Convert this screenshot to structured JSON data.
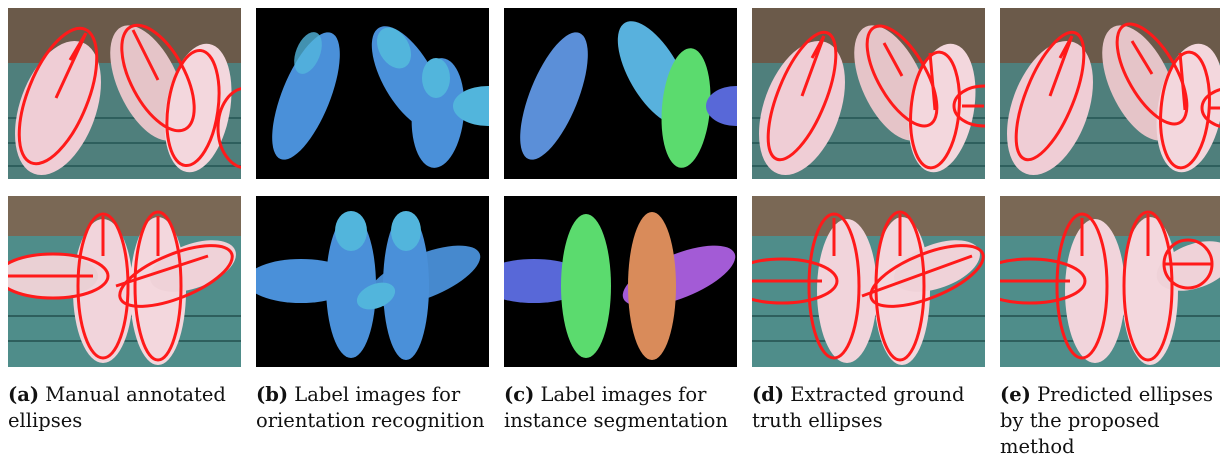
{
  "figure": {
    "colors": {
      "label_black": "#000000",
      "orientation_blue": "#4a90d9",
      "orientation_light": "#52b5dc",
      "seg_blue": "#5b8fd8",
      "seg_light": "#58b1dd",
      "seg_green": "#5bdb6e",
      "seg_indigo": "#5868d8",
      "seg_orange": "#d98b5a",
      "seg_purple": "#a35bd6",
      "annotation_red": "#ff1a1a",
      "pig_pink": "#f3d3da",
      "floor_teal": "#4d8f8a"
    },
    "panels": [
      {
        "id": "a",
        "caption_letter": "(a)",
        "caption_text": "Manual annotated ellipses"
      },
      {
        "id": "b",
        "caption_letter": "(b)",
        "caption_text": "Label images for orientation recognition"
      },
      {
        "id": "c",
        "caption_letter": "(c)",
        "caption_text": "Label images for instance segmentation"
      },
      {
        "id": "d",
        "caption_letter": "(d)",
        "caption_text": "Extracted ground truth ellipses"
      },
      {
        "id": "e",
        "caption_letter": "(e)",
        "caption_text": "Predicted ellipses by the proposed method"
      }
    ]
  }
}
